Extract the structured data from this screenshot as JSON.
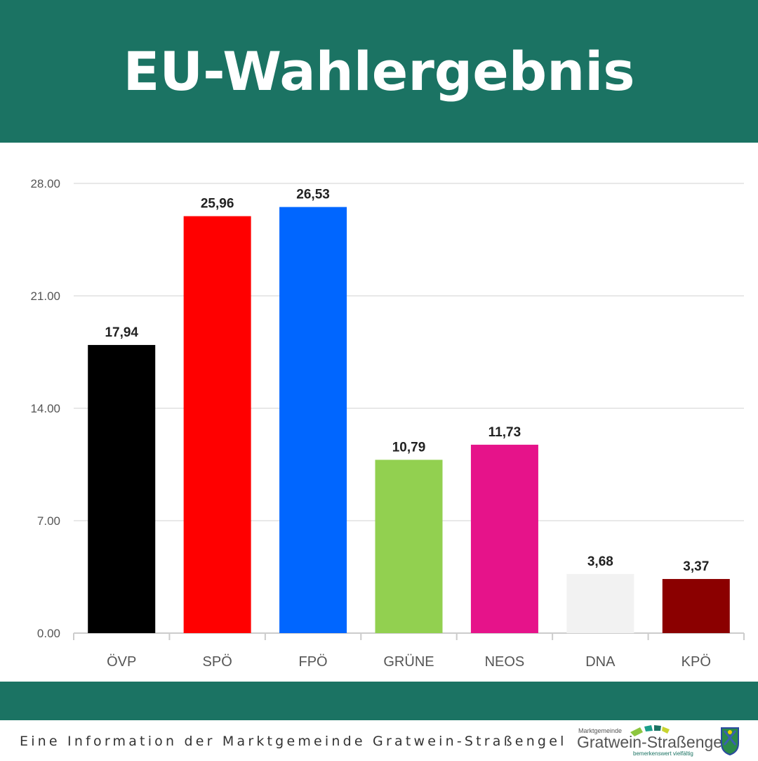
{
  "header": {
    "title": "EU-Wahlergebnis"
  },
  "chart_data": {
    "type": "bar",
    "title": "",
    "xlabel": "",
    "ylabel": "",
    "categories": [
      "ÖVP",
      "SPÖ",
      "FPÖ",
      "GRÜNE",
      "NEOS",
      "DNA",
      "KPÖ"
    ],
    "values": [
      17.94,
      25.96,
      26.53,
      10.79,
      11.73,
      3.68,
      3.37
    ],
    "data_labels": [
      "17,94",
      "25,96",
      "26,53",
      "10,79",
      "11,73",
      "3,68",
      "3,37"
    ],
    "colors": [
      "#000000",
      "#ff0000",
      "#0066ff",
      "#92d050",
      "#e6138a",
      "#f2f2f2",
      "#8b0000"
    ],
    "yticks": [
      "0.00",
      "7.00",
      "14.00",
      "21.00",
      "28.00"
    ],
    "ylim": [
      0,
      28
    ],
    "grid": true
  },
  "footer": {
    "text": "Eine Information der Marktgemeinde Gratwein-Straßengel",
    "logo": {
      "small": "Marktgemeinde",
      "name": "Gratwein-Straßengel",
      "tagline": "bemerkenswert vielfältig"
    }
  }
}
